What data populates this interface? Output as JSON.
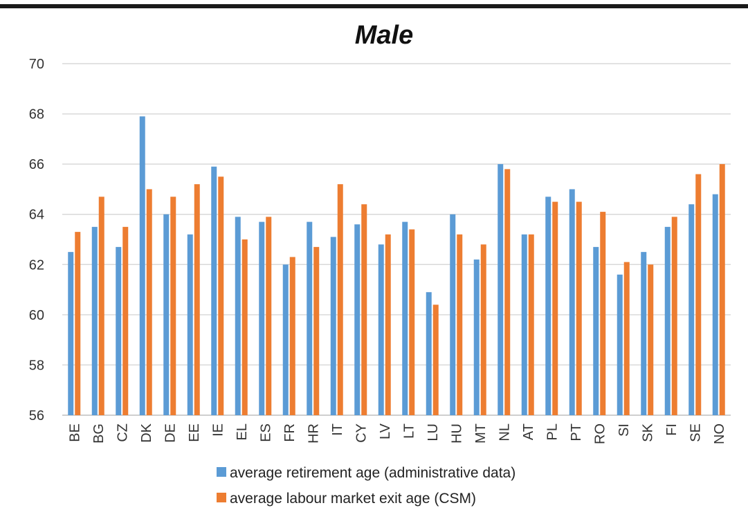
{
  "chart_data": {
    "type": "bar",
    "title": "Male",
    "xlabel": "",
    "ylabel": "",
    "ylim": [
      56,
      70
    ],
    "yticks": [
      56,
      58,
      60,
      62,
      64,
      66,
      68,
      70
    ],
    "grid": true,
    "legend_placement": "bottom",
    "categories": [
      "BE",
      "BG",
      "CZ",
      "DK",
      "DE",
      "EE",
      "IE",
      "EL",
      "ES",
      "FR",
      "HR",
      "IT",
      "CY",
      "LV",
      "LT",
      "LU",
      "HU",
      "MT",
      "NL",
      "AT",
      "PL",
      "PT",
      "RO",
      "SI",
      "SK",
      "FI",
      "SE",
      "NO"
    ],
    "series": [
      {
        "name": "average retirement age (administrative data)",
        "color": "#5b9bd5",
        "values": [
          62.5,
          63.5,
          62.7,
          67.9,
          64.0,
          63.2,
          65.9,
          63.9,
          63.7,
          62.0,
          63.7,
          63.1,
          63.6,
          62.8,
          63.7,
          60.9,
          64.0,
          62.2,
          66.0,
          63.2,
          64.7,
          65.0,
          62.7,
          61.6,
          62.5,
          63.5,
          64.4,
          64.8
        ]
      },
      {
        "name": "average labour market exit age (CSM)",
        "color": "#ed7d31",
        "values": [
          63.3,
          64.7,
          63.5,
          65.0,
          64.7,
          65.2,
          65.5,
          63.0,
          63.9,
          62.3,
          62.7,
          65.2,
          64.4,
          63.2,
          63.4,
          60.4,
          63.2,
          62.8,
          65.8,
          63.2,
          64.5,
          64.5,
          64.1,
          62.1,
          62.0,
          63.9,
          65.6,
          66.0
        ]
      }
    ]
  }
}
